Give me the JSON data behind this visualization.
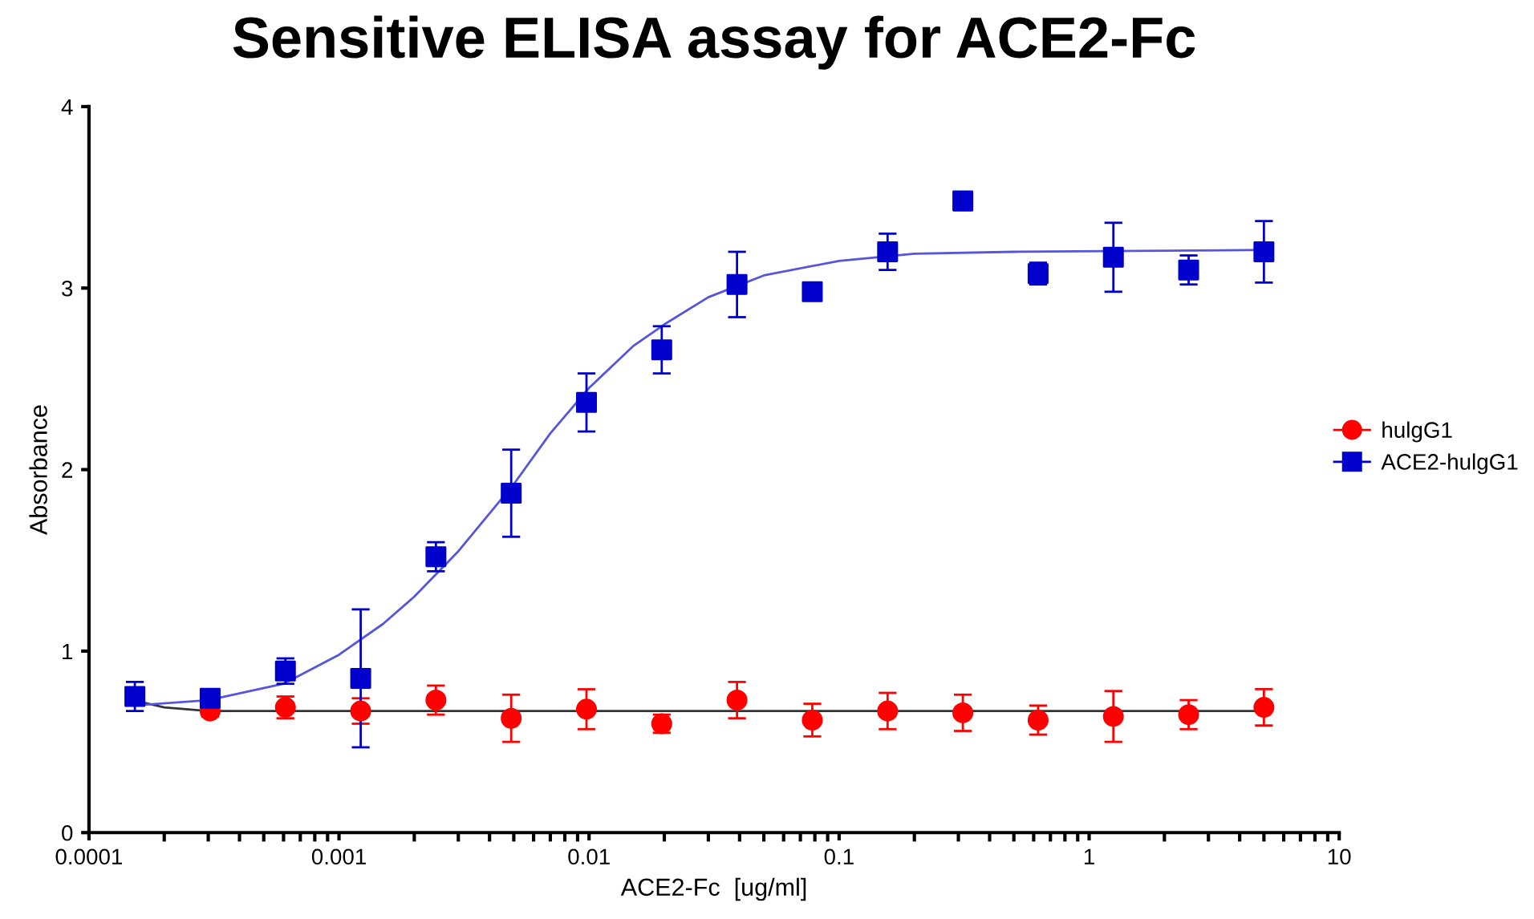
{
  "chart_data": {
    "type": "scatter",
    "title": "Sensitive ELISA assay for ACE2-Fc",
    "xlabel": "ACE2-Fc  [ug/ml]",
    "ylabel": "Absorbance",
    "log": "x",
    "xlim": [
      0.0001,
      10
    ],
    "xticks": [
      0.0001,
      0.001,
      0.01,
      0.1,
      1,
      10
    ],
    "ylim": [
      0,
      4
    ],
    "yticks": [
      0,
      1,
      2,
      3,
      4
    ],
    "grid": false,
    "legend": "right",
    "x": [
      0.0001526,
      0.0003052,
      0.0006104,
      0.001221,
      0.002441,
      0.004883,
      0.009766,
      0.01953,
      0.03906,
      0.07813,
      0.1563,
      0.3125,
      0.625,
      1.25,
      2.5,
      5
    ],
    "series": [
      {
        "name": "hulgG1",
        "color": "#ff0000",
        "marker": "circle",
        "values": [
          null,
          0.67,
          0.69,
          0.67,
          0.73,
          0.63,
          0.68,
          0.6,
          0.73,
          0.62,
          0.67,
          0.66,
          0.62,
          0.64,
          0.65,
          0.69
        ],
        "errors": [
          null,
          0.03,
          0.06,
          0.07,
          0.08,
          0.13,
          0.11,
          0.05,
          0.1,
          0.09,
          0.1,
          0.1,
          0.08,
          0.14,
          0.08,
          0.1
        ]
      },
      {
        "name": "ACE2-hulgG1",
        "color": "#0000cc",
        "marker": "square",
        "values": [
          0.75,
          0.74,
          0.89,
          0.85,
          1.52,
          1.87,
          2.37,
          2.66,
          3.02,
          2.98,
          3.2,
          3.48,
          3.08,
          3.17,
          3.1,
          3.2
        ],
        "errors": [
          0.08,
          0.02,
          0.07,
          0.38,
          0.08,
          0.24,
          0.16,
          0.13,
          0.18,
          null,
          0.1,
          null,
          0.06,
          0.19,
          0.08,
          0.17
        ]
      },
      {
        "type": "line",
        "color": "#333333",
        "x": [
          0.00015,
          0.0002,
          0.0003,
          0.0005,
          0.001,
          0.01,
          0.1,
          1,
          5
        ],
        "values": [
          0.73,
          0.69,
          0.67,
          0.67,
          0.67,
          0.67,
          0.67,
          0.67,
          0.67
        ]
      },
      {
        "type": "line",
        "color": "#5555dd",
        "x": [
          0.00015,
          0.0003,
          0.0006,
          0.001,
          0.0015,
          0.002,
          0.003,
          0.005,
          0.007,
          0.01,
          0.015,
          0.02,
          0.03,
          0.05,
          0.1,
          0.2,
          0.5,
          5
        ],
        "values": [
          0.7,
          0.73,
          0.82,
          0.98,
          1.15,
          1.3,
          1.55,
          1.92,
          2.2,
          2.45,
          2.68,
          2.8,
          2.95,
          3.07,
          3.15,
          3.19,
          3.2,
          3.21
        ]
      }
    ]
  }
}
